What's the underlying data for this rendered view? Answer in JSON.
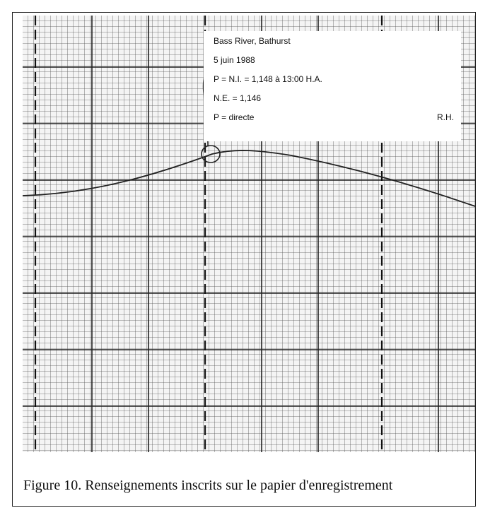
{
  "note": {
    "lines": [
      "Bass River, Bathurst",
      "5 juin 1988",
      "P = N.I. = 1,148 à 13:00 H.A.",
      "N.E. = 1,146",
      "P = directe"
    ],
    "initials": "R.H."
  },
  "caption": "Figure 10. Renseignements inscrits sur le papier d'enregistrement"
}
